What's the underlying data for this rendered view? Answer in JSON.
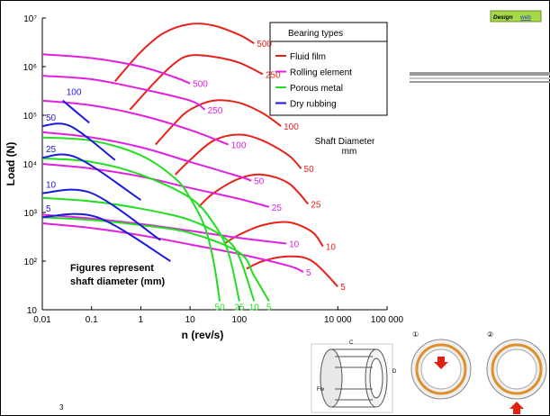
{
  "chart_data": {
    "type": "line",
    "x_label": "n (rev/s)",
    "y_label": "Load (N)",
    "xscale": "log",
    "yscale": "log",
    "xlim": [
      0.01,
      100000
    ],
    "ylim": [
      10,
      10000000
    ],
    "xticks": [
      0.01,
      0.1,
      1,
      10,
      100,
      {
        "value": 10000,
        "label": "10 000"
      },
      {
        "value": 100000,
        "label": "100 000"
      }
    ],
    "yticks": [
      10,
      {
        "value": 100,
        "label": "10²"
      },
      {
        "value": 1000,
        "label": "10³"
      },
      {
        "value": 10000,
        "label": "10⁴"
      },
      {
        "value": 100000,
        "label": "10⁵"
      },
      {
        "value": 1000000,
        "label": "10⁶"
      },
      {
        "value": 10000000,
        "label": "10⁷"
      }
    ],
    "legend_title": "Bearing types",
    "series": [
      {
        "name": "Fluid film",
        "color": "#e8211b",
        "curves": [
          {
            "label": "500",
            "x": [
              0.3,
              1,
              3,
              10,
              30,
              100,
              200
            ],
            "values": [
              500000,
              2000000,
              5000000,
              7500000,
              7000000,
              4500000,
              3000000
            ]
          },
          {
            "label": "250",
            "x": [
              0.6,
              2,
              5,
              10,
              30,
              100,
              300
            ],
            "values": [
              130000,
              500000,
              1200000,
              1700000,
              1600000,
              1200000,
              700000
            ]
          },
          {
            "label": "100",
            "x": [
              2,
              5,
              10,
              30,
              100,
              300,
              700
            ],
            "values": [
              25000,
              70000,
              130000,
              200000,
              180000,
              110000,
              60000
            ]
          },
          {
            "label": "50",
            "x": [
              5,
              10,
              30,
              100,
              300,
              1000,
              1800
            ],
            "values": [
              6000,
              12000,
              30000,
              40000,
              30000,
              15000,
              8000
            ]
          },
          {
            "label": "25",
            "x": [
              15,
              30,
              100,
              300,
              1000,
              2500
            ],
            "values": [
              1300,
              2500,
              5000,
              6000,
              4000,
              1500
            ]
          },
          {
            "label": "10",
            "x": [
              50,
              100,
              300,
              1000,
              3000,
              5000
            ],
            "values": [
              230,
              350,
              550,
              630,
              400,
              200
            ]
          },
          {
            "label": "5",
            "x": [
              140,
              300,
              1000,
              3000,
              10000
            ],
            "values": [
              70,
              100,
              125,
              100,
              30
            ]
          }
        ]
      },
      {
        "name": "Rolling element",
        "color": "#e020e0",
        "curves": [
          {
            "label": "500",
            "x": [
              0.01,
              0.1,
              1,
              5,
              10
            ],
            "values": [
              1800000,
              1500000,
              1000000,
              600000,
              450000
            ]
          },
          {
            "label": "250",
            "x": [
              0.01,
              0.1,
              1,
              10,
              20
            ],
            "values": [
              650000,
              550000,
              350000,
              200000,
              130000
            ]
          },
          {
            "label": "100",
            "x": [
              0.01,
              0.1,
              1,
              10,
              60
            ],
            "values": [
              200000,
              160000,
              100000,
              50000,
              25000
            ]
          },
          {
            "label": "50",
            "x": [
              0.01,
              0.1,
              1,
              10,
              100,
              175
            ],
            "values": [
              45000,
              35000,
              22000,
              11000,
              5500,
              4500
            ]
          },
          {
            "label": "25",
            "x": [
              0.01,
              0.1,
              1,
              10,
              100,
              400
            ],
            "values": [
              10000,
              8000,
              5500,
              3200,
              1900,
              1300
            ]
          },
          {
            "label": "10",
            "x": [
              0.01,
              0.1,
              1,
              10,
              100,
              900
            ],
            "values": [
              900,
              750,
              580,
              420,
              300,
              230
            ]
          },
          {
            "label": "5",
            "x": [
              0.01,
              0.1,
              1,
              10,
              100,
              1000,
              2000
            ],
            "values": [
              600,
              480,
              340,
              220,
              140,
              80,
              60
            ]
          }
        ]
      },
      {
        "name": "Porous metal",
        "color": "#22dd22",
        "curves": [
          {
            "label": "50",
            "x": [
              0.01,
              0.1,
              1,
              5,
              10,
              20,
              30,
              40
            ],
            "values": [
              35000,
              30000,
              15000,
              5000,
              2000,
              500,
              100,
              15
            ]
          },
          {
            "label": "25",
            "x": [
              0.01,
              0.1,
              1,
              10,
              30,
              60,
              100
            ],
            "values": [
              13000,
              11000,
              6000,
              2000,
              600,
              150,
              15
            ]
          },
          {
            "label": "10",
            "x": [
              0.01,
              0.1,
              1,
              10,
              50,
              100,
              200
            ],
            "values": [
              2000,
              1700,
              1200,
              700,
              300,
              120,
              15
            ]
          },
          {
            "label": "5",
            "x": [
              0.01,
              0.1,
              1,
              10,
              100,
              200,
              400
            ],
            "values": [
              800,
              700,
              550,
              380,
              150,
              50,
              15
            ]
          }
        ]
      },
      {
        "name": "Dry rubbing",
        "color": "#1a1adc",
        "curves": [
          {
            "label": "100",
            "x": [
              0.026,
              0.09
            ],
            "values": [
              200000,
              70000
            ]
          },
          {
            "label": "50",
            "x": [
              0.01,
              0.037,
              0.3
            ],
            "values": [
              60000,
              60000,
              12000
            ]
          },
          {
            "label": "25",
            "x": [
              0.01,
              0.05,
              1
            ],
            "values": [
              13500,
              13500,
              1800
            ]
          },
          {
            "label": "10",
            "x": [
              0.01,
              0.1,
              2.5
            ],
            "values": [
              2500,
              2500,
              270
            ]
          },
          {
            "label": "5",
            "x": [
              0.01,
              0.13,
              4
            ],
            "values": [
              800,
              800,
              100
            ]
          }
        ]
      }
    ],
    "annotations": [
      "Shaft Diameter",
      "mm",
      "Figures represent",
      "shaft diameter (mm)"
    ]
  },
  "badge": {
    "text": "Design",
    "link": "web"
  },
  "slide_number": "3",
  "illustration_labels": [
    "C",
    "D",
    "Fw",
    "①",
    "②"
  ]
}
